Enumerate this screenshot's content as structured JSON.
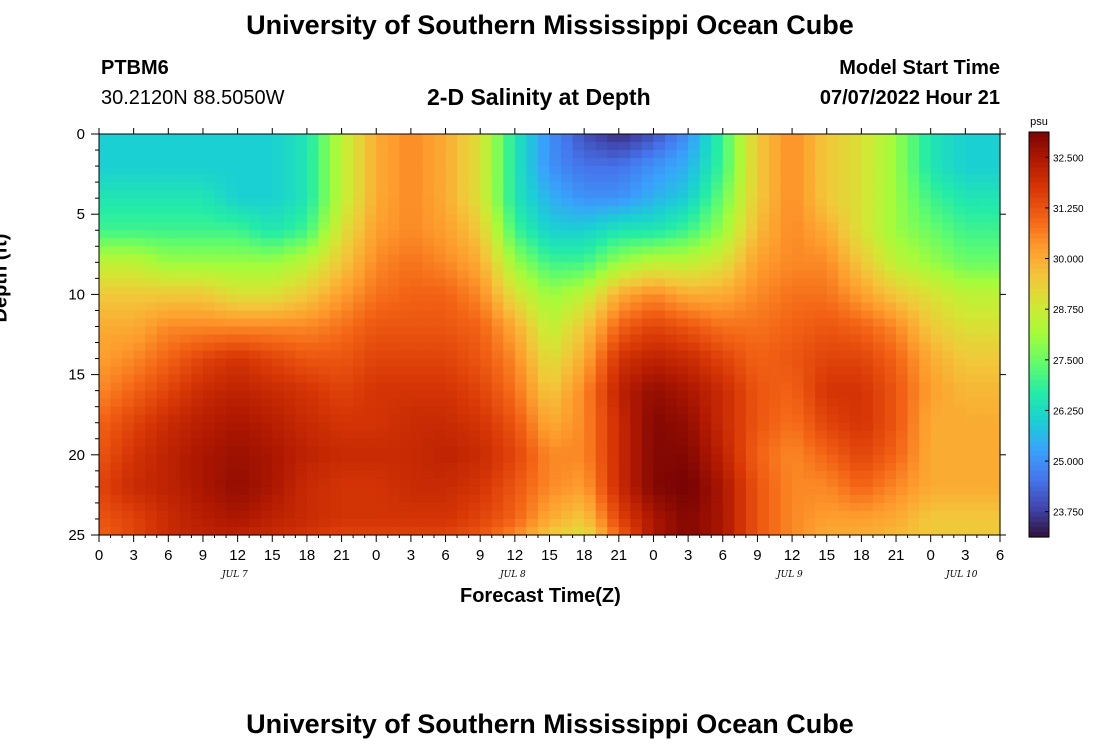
{
  "header": {
    "title": "University of Southern Mississippi Ocean Cube",
    "station": "PTBM6",
    "coords": "30.2120N  88.5050W",
    "subtitle": "2-D Salinity at Depth",
    "model_label": "Model Start Time",
    "model_time": "07/07/2022 Hour 21"
  },
  "footer": {
    "title": "University of Southern Mississippi Ocean Cube"
  },
  "colors": {
    "scale": [
      "#30123b",
      "#4145ab",
      "#4675ed",
      "#39a2fc",
      "#1bcfd4",
      "#24eca6",
      "#61fc6c",
      "#a4fc3b",
      "#d1e834",
      "#f3c63a",
      "#fe9b2d",
      "#f36315",
      "#d93806",
      "#b11901",
      "#7a0403"
    ]
  },
  "chart_data": {
    "type": "heatmap",
    "title": "2-D Salinity at Depth",
    "xlabel": "Forecast Time(Z)",
    "ylabel": "Depth (ft)",
    "x_unit": "hours since 2022-07-07 00Z",
    "xlim": [
      0,
      78
    ],
    "ylim": [
      0,
      25
    ],
    "x_tick_labels": [
      "0",
      "3",
      "6",
      "9",
      "12",
      "15",
      "18",
      "21",
      "0",
      "3",
      "6",
      "9",
      "12",
      "15",
      "18",
      "21",
      "0",
      "3",
      "6",
      "9",
      "12",
      "15",
      "18",
      "21",
      "0",
      "3",
      "6"
    ],
    "y_ticks": [
      0,
      5,
      10,
      15,
      20,
      25
    ],
    "day_labels": [
      {
        "x": 12,
        "label": "JUL 7"
      },
      {
        "x": 36,
        "label": "JUL 8"
      },
      {
        "x": 60,
        "label": "JUL 9"
      },
      {
        "x": 75,
        "label": "JUL 10"
      }
    ],
    "colorbar": {
      "unit": "psu",
      "range": [
        23.125,
        33.125
      ],
      "ticks": [
        "32.500",
        "31.250",
        "30.000",
        "28.750",
        "27.500",
        "26.250",
        "25.000",
        "23.750"
      ]
    },
    "x": [
      0,
      3,
      6,
      9,
      12,
      15,
      18,
      21,
      24,
      27,
      30,
      33,
      36,
      39,
      42,
      45,
      48,
      51,
      54,
      57,
      60,
      63,
      66,
      69,
      72,
      75,
      78
    ],
    "depths": [
      0,
      2,
      4,
      6,
      8,
      10,
      12,
      14,
      16,
      18,
      20,
      22,
      24,
      25
    ],
    "z": [
      [
        26.0,
        26.0,
        26.0,
        26.0,
        26.0,
        26.0,
        26.5,
        28.5,
        30.0,
        30.5,
        30.0,
        29.0,
        26.5,
        25.0,
        24.0,
        23.5,
        24.0,
        25.0,
        27.0,
        29.5,
        30.5,
        29.5,
        29.0,
        28.0,
        26.5,
        26.0,
        26.0
      ],
      [
        26.0,
        26.0,
        26.0,
        26.0,
        26.0,
        26.0,
        26.5,
        28.5,
        30.0,
        30.5,
        30.0,
        29.0,
        26.5,
        25.0,
        24.5,
        24.5,
        25.0,
        25.5,
        27.0,
        29.5,
        30.5,
        29.5,
        29.0,
        28.0,
        26.5,
        26.0,
        26.0
      ],
      [
        26.5,
        26.5,
        26.5,
        26.5,
        26.0,
        26.0,
        26.5,
        28.5,
        30.0,
        30.5,
        30.0,
        29.0,
        26.5,
        25.5,
        25.0,
        25.0,
        25.5,
        26.0,
        27.5,
        29.5,
        30.5,
        29.5,
        29.0,
        28.0,
        27.0,
        26.5,
        26.5
      ],
      [
        27.0,
        27.0,
        27.0,
        27.0,
        27.0,
        26.5,
        27.0,
        29.0,
        30.2,
        30.5,
        30.2,
        29.5,
        27.0,
        26.0,
        26.0,
        26.5,
        26.5,
        27.0,
        28.0,
        29.8,
        30.5,
        30.0,
        29.0,
        28.0,
        27.5,
        27.0,
        27.0
      ],
      [
        28.5,
        28.5,
        28.0,
        28.0,
        28.0,
        28.0,
        28.5,
        29.5,
        30.5,
        30.8,
        30.5,
        30.0,
        28.0,
        27.0,
        27.0,
        28.0,
        28.5,
        28.5,
        29.0,
        30.2,
        30.5,
        30.5,
        29.5,
        28.5,
        28.0,
        27.5,
        27.5
      ],
      [
        29.5,
        29.5,
        29.5,
        29.5,
        29.0,
        29.0,
        29.5,
        30.2,
        30.8,
        31.0,
        31.0,
        30.5,
        29.0,
        28.0,
        28.5,
        30.0,
        30.5,
        30.0,
        30.0,
        30.5,
        30.8,
        30.8,
        30.2,
        29.5,
        29.0,
        28.5,
        28.5
      ],
      [
        30.0,
        30.0,
        30.5,
        30.5,
        30.5,
        30.5,
        30.5,
        30.8,
        31.2,
        31.2,
        31.2,
        31.0,
        30.0,
        28.5,
        29.5,
        31.0,
        31.5,
        31.2,
        30.8,
        30.8,
        31.0,
        31.2,
        31.0,
        30.5,
        29.5,
        29.0,
        29.0
      ],
      [
        30.2,
        30.5,
        31.0,
        31.5,
        31.8,
        31.5,
        31.2,
        31.2,
        31.5,
        31.5,
        31.5,
        31.2,
        30.5,
        29.0,
        30.0,
        31.8,
        32.2,
        32.0,
        31.5,
        31.0,
        31.2,
        31.5,
        31.5,
        31.0,
        30.0,
        29.5,
        29.5
      ],
      [
        30.5,
        31.0,
        31.5,
        32.0,
        32.2,
        32.0,
        31.8,
        31.5,
        31.8,
        31.8,
        31.8,
        31.5,
        30.8,
        29.5,
        30.5,
        32.2,
        32.8,
        32.5,
        32.0,
        31.2,
        31.0,
        31.8,
        31.8,
        31.2,
        30.2,
        29.8,
        29.8
      ],
      [
        31.0,
        31.5,
        32.0,
        32.3,
        32.5,
        32.3,
        32.0,
        31.8,
        31.8,
        32.0,
        32.0,
        31.8,
        31.2,
        30.0,
        30.5,
        32.0,
        33.0,
        32.8,
        32.0,
        31.2,
        30.8,
        31.5,
        31.8,
        31.2,
        30.0,
        30.0,
        30.0
      ],
      [
        31.2,
        31.8,
        32.2,
        32.5,
        32.7,
        32.5,
        32.2,
        32.0,
        32.0,
        32.0,
        32.2,
        32.0,
        31.5,
        30.5,
        30.5,
        32.0,
        33.0,
        33.0,
        32.2,
        31.0,
        30.5,
        31.0,
        31.5,
        31.0,
        30.0,
        30.0,
        30.0
      ],
      [
        31.5,
        32.0,
        32.2,
        32.5,
        32.8,
        32.5,
        32.0,
        31.8,
        31.8,
        32.0,
        32.0,
        31.8,
        31.2,
        30.5,
        30.2,
        32.0,
        33.0,
        33.2,
        32.5,
        31.2,
        30.5,
        30.5,
        31.0,
        30.5,
        30.0,
        30.0,
        30.0
      ],
      [
        31.2,
        31.5,
        32.0,
        32.3,
        32.5,
        32.2,
        32.0,
        31.8,
        31.8,
        31.8,
        31.8,
        31.5,
        31.0,
        30.0,
        29.5,
        31.5,
        32.5,
        33.0,
        32.5,
        31.2,
        30.5,
        30.2,
        30.2,
        30.0,
        29.5,
        29.5,
        29.5
      ],
      [
        31.0,
        31.5,
        32.0,
        32.2,
        32.2,
        32.0,
        31.8,
        31.5,
        31.5,
        31.5,
        31.5,
        31.2,
        30.5,
        29.5,
        29.0,
        31.0,
        32.5,
        33.0,
        32.5,
        31.2,
        30.5,
        30.0,
        30.0,
        29.8,
        29.5,
        29.5,
        29.5
      ]
    ]
  }
}
